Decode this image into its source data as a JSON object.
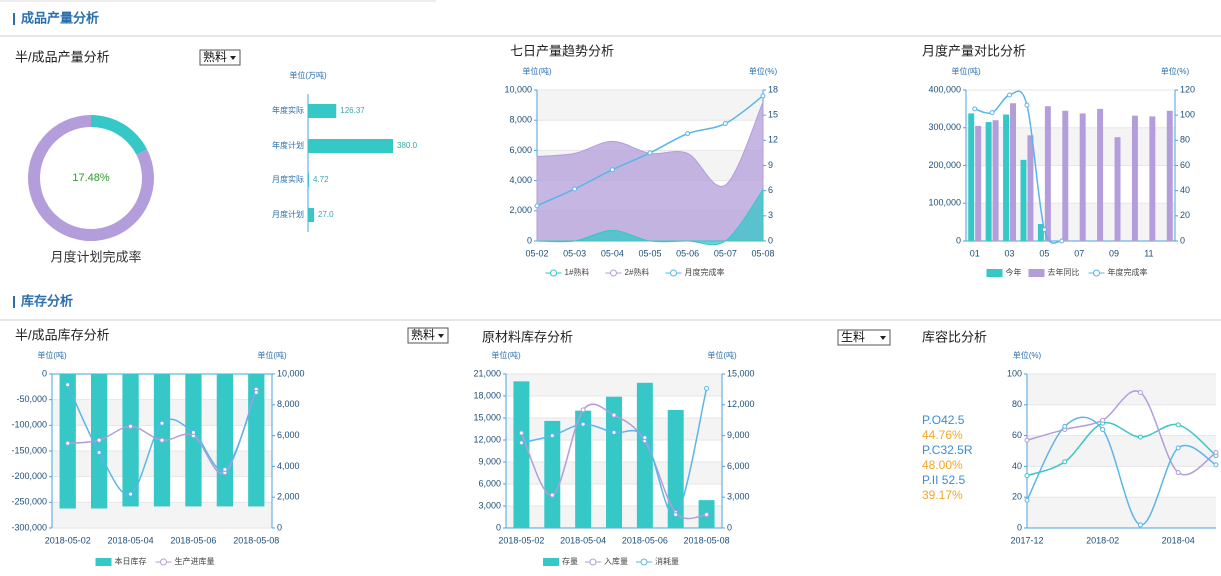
{
  "sections": [
    "成品产量分析",
    "库存分析"
  ],
  "dropdowns": [
    "熟料",
    "熟料",
    "生料"
  ],
  "chart_data": [
    {
      "type": "pie",
      "title": "半/成品产量分析",
      "values": [
        17.48,
        82.52
      ],
      "value_labels": [
        "17.48%",
        null
      ],
      "colors": [
        "#36c7c7",
        "#b39ddb"
      ],
      "caption": "月度计划完成率"
    },
    {
      "type": "bar",
      "orientation": "horizontal",
      "unit_label": "单位(万吨)",
      "categories": [
        "年度实际",
        "年度计划",
        "月度实际",
        "月度计划"
      ],
      "values": [
        126.37,
        380,
        4.72,
        27
      ],
      "value_labels": [
        "126.37",
        "380.0",
        "4.72",
        "27.0"
      ],
      "color": "#36c7c7"
    },
    {
      "type": "combo",
      "title": "七日产量趋势分析",
      "y_label": "单位(吨)",
      "y2_label": "单位(%)",
      "grid": true,
      "smooth": true,
      "boundary_gap": false,
      "categories": [
        "05-02",
        "05-03",
        "05-04",
        "05-05",
        "05-06",
        "05-07",
        "05-08"
      ],
      "ylim": [
        0,
        10000
      ],
      "yticks": [
        0,
        {
          "value": 2000,
          "label": "2,000"
        },
        {
          "value": 4000,
          "label": "4,000"
        },
        {
          "value": 6000,
          "label": "6,000"
        },
        {
          "value": 8000,
          "label": "8,000"
        },
        {
          "value": 10000,
          "label": "10,000"
        }
      ],
      "y2lim": [
        0,
        18
      ],
      "y2ticks": [
        0,
        3,
        6,
        9,
        12,
        15,
        18
      ],
      "series": [
        {
          "name": "1#熟料",
          "kind": "area",
          "color": "#36c7c7",
          "values": [
            0,
            0,
            700,
            0,
            0,
            0,
            3400
          ]
        },
        {
          "name": "2#熟料",
          "kind": "area",
          "color": "#b39ddb",
          "values": [
            5600,
            5800,
            6600,
            5800,
            5800,
            3700,
            9200
          ]
        },
        {
          "name": "月度完成率",
          "kind": "line",
          "axis": "y2",
          "color": "#5bb5e8",
          "values": [
            4.2,
            6.2,
            8.5,
            10.5,
            12.8,
            14,
            17.3
          ]
        }
      ]
    },
    {
      "type": "combo",
      "title": "月度产量对比分析",
      "y_label": "单位(吨)",
      "y2_label": "单位(%)",
      "grid": true,
      "smooth": true,
      "boundary_gap": true,
      "categories": [
        "01",
        null,
        "03",
        null,
        "05",
        null,
        "07",
        null,
        "09",
        null,
        "11",
        null
      ],
      "ylim": [
        0,
        400000
      ],
      "yticks": [
        0,
        {
          "value": 100000,
          "label": "100,000"
        },
        {
          "value": 200000,
          "label": "200,000"
        },
        {
          "value": 300000,
          "label": "300,000"
        },
        {
          "value": 400000,
          "label": "400,000"
        }
      ],
      "y2lim": [
        0,
        120
      ],
      "y2ticks": [
        0,
        20,
        40,
        60,
        80,
        100,
        120
      ],
      "series": [
        {
          "name": "今年",
          "kind": "bar",
          "color": "#36c7c7",
          "values": [
            338000,
            315000,
            335000,
            215000,
            45000,
            null,
            null,
            null,
            null,
            null,
            null,
            null
          ]
        },
        {
          "name": "去年同比",
          "kind": "bar",
          "color": "#b39ddb",
          "values": [
            305000,
            320000,
            365000,
            280000,
            357000,
            345000,
            338000,
            350000,
            275000,
            332000,
            330000,
            345000
          ]
        },
        {
          "name": "年度完成率",
          "kind": "line",
          "axis": "y2",
          "color": "#5bb5e8",
          "values": [
            105,
            102,
            116,
            108,
            9,
            0,
            null,
            null,
            null,
            null,
            null,
            null
          ]
        }
      ]
    },
    {
      "type": "combo",
      "title": "半/成品库存分析",
      "y_label": "单位(吨)",
      "y2_label": "单位(吨)",
      "grid": true,
      "smooth": true,
      "boundary_gap": true,
      "categories": [
        "2018-05-02",
        null,
        "2018-05-04",
        null,
        "2018-05-06",
        null,
        "2018-05-08"
      ],
      "ylim": [
        -300000,
        0
      ],
      "yticks": [
        {
          "value": -300000,
          "label": "-300,000"
        },
        {
          "value": -250000,
          "label": "-250,000"
        },
        {
          "value": -200000,
          "label": "-200,000"
        },
        {
          "value": -150000,
          "label": "-150,000"
        },
        {
          "value": -100000,
          "label": "-100,000"
        },
        {
          "value": -50000,
          "label": "-50,000"
        },
        0
      ],
      "y2lim": [
        0,
        10000
      ],
      "y2ticks": [
        0,
        {
          "value": 2000,
          "label": "2,000"
        },
        {
          "value": 4000,
          "label": "4,000"
        },
        {
          "value": 6000,
          "label": "6,000"
        },
        {
          "value": 8000,
          "label": "8,000"
        },
        {
          "value": 10000,
          "label": "10,000"
        }
      ],
      "series": [
        {
          "name": "本日库存",
          "kind": "bar",
          "color": "#36c7c7",
          "values": [
            -262000,
            -262000,
            -258000,
            -258000,
            -258000,
            -258000,
            -258000
          ]
        },
        {
          "name": "生产进库量",
          "kind": "line",
          "axis": "y2",
          "color": "#b39ddb",
          "values": [
            5500,
            5700,
            6600,
            5700,
            6000,
            3600,
            9000
          ]
        },
        {
          "kind": "line",
          "axis": "y2",
          "color": "#5bb5e8",
          "values": [
            9300,
            4900,
            2200,
            6800,
            6200,
            3800,
            8800
          ]
        }
      ]
    },
    {
      "type": "combo",
      "title": "原材料库存分析",
      "y_label": "单位(吨)",
      "y2_label": "单位(吨)",
      "grid": true,
      "smooth": true,
      "boundary_gap": true,
      "categories": [
        "2018-05-02",
        null,
        "2018-05-04",
        null,
        "2018-05-06",
        null,
        "2018-05-08"
      ],
      "ylim": [
        0,
        21000
      ],
      "yticks": [
        0,
        {
          "value": 3000,
          "label": "3,000"
        },
        {
          "value": 6000,
          "label": "6,000"
        },
        {
          "value": 9000,
          "label": "9,000"
        },
        {
          "value": 12000,
          "label": "12,000"
        },
        {
          "value": 15000,
          "label": "15,000"
        },
        {
          "value": 18000,
          "label": "18,000"
        },
        {
          "value": 21000,
          "label": "21,000"
        }
      ],
      "y2lim": [
        0,
        15000
      ],
      "y2ticks": [
        0,
        {
          "value": 3000,
          "label": "3,000"
        },
        {
          "value": 6000,
          "label": "6,000"
        },
        {
          "value": 9000,
          "label": "9,000"
        },
        {
          "value": 12000,
          "label": "12,000"
        },
        {
          "value": 15000,
          "label": "15,000"
        }
      ],
      "series": [
        {
          "name": "存量",
          "kind": "bar",
          "color": "#36c7c7",
          "values": [
            20000,
            14600,
            16000,
            17900,
            19800,
            16100,
            3800
          ]
        },
        {
          "name": "入库量",
          "kind": "line",
          "axis": "y2",
          "color": "#b39ddb",
          "values": [
            9250,
            3200,
            11500,
            11000,
            8500,
            1500,
            1300
          ]
        },
        {
          "name": "消耗量",
          "kind": "line",
          "axis": "y2",
          "color": "#5bb5e8",
          "values": [
            8300,
            9000,
            10100,
            9300,
            8800,
            1300,
            13600
          ]
        }
      ]
    },
    {
      "type": "line",
      "title": "库容比分析",
      "y_label": "单位(%)",
      "grid": true,
      "smooth": true,
      "boundary_gap": false,
      "categories": [
        "2017-12",
        null,
        "2018-02",
        null,
        "2018-04",
        null
      ],
      "ylim": [
        0,
        100
      ],
      "yticks": [
        0,
        20,
        40,
        60,
        80,
        100
      ],
      "stats": [
        {
          "name": "P.O42.5",
          "label": "44.76%"
        },
        {
          "name": "P.C32.5R",
          "label": "48.00%"
        },
        {
          "name": "P.II 52.5",
          "label": "39.17%"
        }
      ],
      "series": [
        {
          "kind": "line",
          "color": "#36c7c7",
          "values": [
            34,
            43,
            68,
            59,
            67,
            47
          ]
        },
        {
          "kind": "line",
          "color": "#b39ddb",
          "values": [
            57,
            64,
            70,
            88,
            36,
            49
          ]
        },
        {
          "kind": "line",
          "color": "#5bb5e8",
          "values": [
            18,
            66,
            64,
            2,
            52,
            41
          ]
        }
      ]
    }
  ]
}
